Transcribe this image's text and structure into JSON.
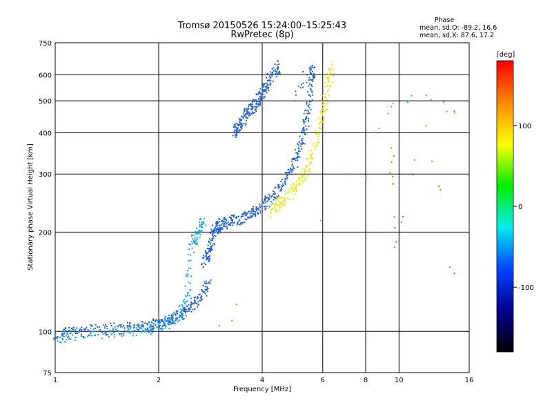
{
  "chart_data": {
    "type": "scatter",
    "title": "Tromsø 20150526 15:24:00–15:25:43",
    "subtitle": "RwPretec (8p)",
    "xlabel": "Frequency [MHz]",
    "ylabel": "Stationary phase Virtual Height [km]",
    "x_scale": "log",
    "y_scale": "log",
    "xlim": [
      1,
      16
    ],
    "ylim": [
      75,
      750
    ],
    "x_ticks": [
      1,
      2,
      4,
      6,
      8,
      10,
      16
    ],
    "x_tick_labels": [
      "1",
      "2",
      "4",
      "6",
      "8",
      "10",
      "16"
    ],
    "y_ticks": [
      75,
      100,
      200,
      300,
      400,
      500,
      600,
      750
    ],
    "y_tick_labels": [
      "75",
      "100",
      "200",
      "300",
      "400",
      "500",
      "600",
      "750"
    ],
    "grid": true,
    "stats": {
      "heading": "Phase",
      "line_o": "mean, sd,O: -89.2, 16.6",
      "line_x": "mean, sd,X:  87.6, 17.2"
    },
    "colorbar": {
      "label": "[deg]",
      "range": [
        -180,
        180
      ],
      "ticks": [
        100,
        0,
        -100
      ],
      "tick_labels": [
        "100",
        "0",
        "-100"
      ],
      "colors": [
        "#ff0000",
        "#ff8800",
        "#ffff00",
        "#00ee00",
        "#00eeee",
        "#0044ff",
        "#000090",
        "#000000"
      ]
    },
    "series": [
      {
        "phase": -100,
        "color": "#1e5fd6",
        "segments": [
          {
            "x": [
              1.0,
              1.2,
              1.5,
              1.8,
              2.0,
              2.2,
              2.4,
              2.6,
              2.8
            ],
            "y": [
              98,
              100,
              102,
              103,
              106,
              110,
              115,
              125,
              140
            ]
          },
          {
            "x": [
              2.7,
              2.8,
              2.9,
              3.0,
              3.2,
              3.5,
              3.8,
              4.2,
              4.6,
              5.0,
              5.3,
              5.5,
              5.6
            ],
            "y": [
              160,
              175,
              200,
              210,
              215,
              220,
              230,
              250,
              280,
              330,
              400,
              500,
              630
            ]
          },
          {
            "x": [
              3.3,
              3.45,
              3.6,
              3.8,
              4.0,
              4.2,
              4.5
            ],
            "y": [
              400,
              420,
              460,
              480,
              520,
              580,
              640
            ]
          },
          {
            "x": [
              5.0,
              5.2,
              5.4,
              5.6
            ],
            "y": [
              500,
              560,
              600,
              640
            ]
          }
        ]
      },
      {
        "phase": -80,
        "color": "#1aa3e8",
        "segments": [
          {
            "x": [
              1.0,
              1.2,
              1.5,
              1.8,
              2.0,
              2.2,
              2.4,
              2.5,
              2.6,
              2.7
            ],
            "y": [
              96,
              98,
              100,
              101,
              103,
              108,
              120,
              185,
              200,
              215
            ]
          }
        ]
      },
      {
        "phase": 100,
        "color": "#e8e81a",
        "segments": [
          {
            "x": [
              4.2,
              4.5,
              4.8,
              5.1,
              5.4,
              5.7,
              6.0,
              6.2,
              6.4
            ],
            "y": [
              230,
              245,
              260,
              280,
              310,
              370,
              450,
              540,
              640
            ]
          }
        ]
      },
      {
        "phase": 60,
        "color": "#33cc33",
        "segments": [
          {
            "x": [
              7.3,
              9.5,
              12.0,
              14.5
            ],
            "y": [
              300,
              480,
              520,
              460
            ]
          }
        ]
      },
      {
        "phase": 150,
        "color": "#ff6600",
        "segments": [
          {
            "x": [
              3.0,
              9.5,
              9.6,
              9.7,
              12.0,
              14.5
            ],
            "y": [
              104,
              360,
              280,
              180,
              420,
              150
            ]
          }
        ]
      }
    ]
  }
}
